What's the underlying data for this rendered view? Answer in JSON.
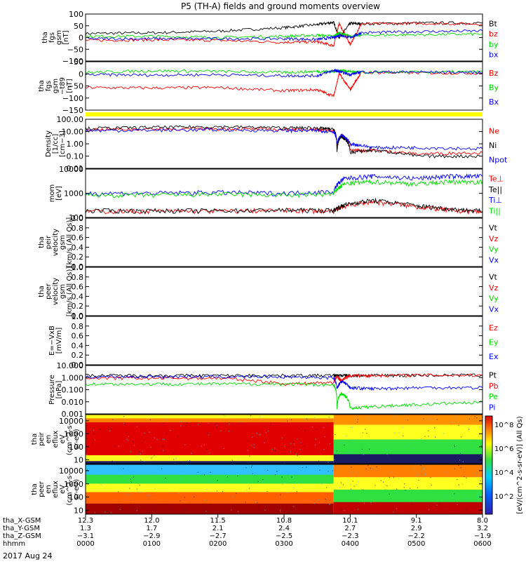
{
  "title": "P5 (TH-A) fields and ground moments overview",
  "date_label": "2017 Aug 24",
  "colors": {
    "black": "#000000",
    "red": "#ff0000",
    "green": "#00dd00",
    "blue": "#0000ff",
    "yellow": "#ffff00"
  },
  "chart_data": [
    {
      "type": "line",
      "id": "fgs",
      "ylabel": [
        "tha",
        "fgs",
        "gsm",
        "[nT]"
      ],
      "yticks": [
        "100",
        "50",
        "0",
        "−50",
        "−100"
      ],
      "ylim": [
        -100,
        100
      ],
      "series": [
        {
          "name": "Bt",
          "color": "black",
          "x": [
            0,
            60,
            120,
            180,
            210,
            225,
            230,
            240,
            250,
            300,
            360
          ],
          "y": [
            17,
            20,
            27,
            42,
            55,
            65,
            0,
            60,
            58,
            62,
            62
          ]
        },
        {
          "name": "bz",
          "color": "red",
          "x": [
            0,
            60,
            120,
            180,
            210,
            225,
            230,
            240,
            250,
            300,
            360
          ],
          "y": [
            -12,
            -10,
            -12,
            -20,
            -18,
            -35,
            60,
            -30,
            58,
            60,
            58
          ]
        },
        {
          "name": "by",
          "color": "green",
          "x": [
            0,
            60,
            120,
            180,
            210,
            225,
            230,
            240,
            250,
            300,
            360
          ],
          "y": [
            5,
            5,
            0,
            5,
            10,
            5,
            20,
            5,
            10,
            12,
            15
          ]
        },
        {
          "name": "bx",
          "color": "blue",
          "x": [
            0,
            60,
            120,
            180,
            210,
            225,
            230,
            240,
            250,
            300,
            360
          ],
          "y": [
            -5,
            -5,
            -5,
            -5,
            -8,
            0,
            10,
            0,
            20,
            25,
            28
          ]
        }
      ]
    },
    {
      "type": "line",
      "id": "fgs-t89",
      "ylabel": [
        "tha",
        "fgs",
        "gsm",
        "−t89",
        "[nT]"
      ],
      "yticks": [
        "50",
        "0",
        "−50",
        "−100",
        "−150"
      ],
      "ylim": [
        -175,
        50
      ],
      "series": [
        {
          "name": "Bz",
          "color": "red",
          "x": [
            0,
            60,
            120,
            180,
            210,
            225,
            230,
            240,
            250,
            300,
            360
          ],
          "y": [
            -70,
            -72,
            -70,
            -85,
            -80,
            -110,
            -5,
            -80,
            0,
            -2,
            -3
          ]
        },
        {
          "name": "By",
          "color": "green",
          "x": [
            0,
            60,
            120,
            180,
            210,
            225,
            230,
            240,
            250,
            300,
            360
          ],
          "y": [
            0,
            8,
            5,
            0,
            5,
            5,
            10,
            5,
            0,
            2,
            3
          ]
        },
        {
          "name": "Bx",
          "color": "blue",
          "x": [
            0,
            60,
            120,
            180,
            210,
            225,
            230,
            240,
            250,
            300,
            360
          ],
          "y": [
            -10,
            -12,
            -10,
            -15,
            -15,
            10,
            5,
            -10,
            3,
            2,
            0
          ]
        }
      ]
    },
    {
      "type": "line",
      "id": "density",
      "ylabel": [
        "Density",
        "[1/cc]",
        "[cm−3]"
      ],
      "yticks": [
        "100.00",
        "10.00",
        "1.00",
        "0.10",
        "0.01"
      ],
      "ylim": [
        0.01,
        100
      ],
      "yscale": "log",
      "series": [
        {
          "name": "Ne",
          "color": "red",
          "x": [
            0,
            60,
            120,
            180,
            210,
            225,
            228,
            232,
            240,
            260,
            300,
            360
          ],
          "y": [
            15,
            16,
            17,
            15,
            15,
            12,
            0.2,
            5,
            0.3,
            0.3,
            0.15,
            0.2
          ]
        },
        {
          "name": "Ni",
          "color": "black",
          "x": [
            0,
            60,
            120,
            180,
            210,
            225,
            228,
            232,
            240,
            260,
            300,
            360
          ],
          "y": [
            18,
            22,
            25,
            20,
            20,
            15,
            0.2,
            4,
            0.2,
            0.3,
            0.1,
            0.1
          ]
        },
        {
          "name": "Npot",
          "color": "blue",
          "x": [
            0,
            60,
            120,
            180,
            210,
            225,
            228,
            232,
            240,
            260,
            300,
            360
          ],
          "y": [
            12,
            13,
            14,
            12,
            12,
            10,
            1,
            5,
            1,
            0.5,
            0.5,
            0.4
          ]
        }
      ]
    },
    {
      "type": "line",
      "id": "temperature",
      "ylabel": [
        "mom",
        "[eV]"
      ],
      "yticks": [
        "10000",
        "1000",
        "100"
      ],
      "ylim": [
        20,
        10000
      ],
      "yscale": "log",
      "series": [
        {
          "name": "Te⊥",
          "color": "red",
          "x": [
            0,
            60,
            120,
            180,
            225,
            235,
            260,
            300,
            330,
            360
          ],
          "y": [
            45,
            45,
            45,
            50,
            45,
            90,
            150,
            80,
            50,
            40
          ]
        },
        {
          "name": "Te||",
          "color": "black",
          "x": [
            0,
            60,
            120,
            180,
            225,
            235,
            260,
            300,
            330,
            360
          ],
          "y": [
            48,
            48,
            48,
            52,
            50,
            100,
            180,
            90,
            60,
            45
          ]
        },
        {
          "name": "Ti⊥",
          "color": "blue",
          "x": [
            0,
            60,
            120,
            180,
            225,
            235,
            260,
            300,
            330,
            360
          ],
          "y": [
            450,
            450,
            500,
            450,
            550,
            3000,
            4000,
            3000,
            4000,
            4000
          ]
        },
        {
          "name": "Ti||",
          "color": "green",
          "x": [
            0,
            60,
            120,
            180,
            225,
            235,
            260,
            300,
            330,
            360
          ],
          "y": [
            350,
            350,
            400,
            350,
            400,
            1500,
            2000,
            1500,
            2000,
            2000
          ]
        }
      ]
    },
    {
      "type": "line",
      "id": "peir-velocity",
      "ylabel": [
        "tha",
        "peir",
        "velocity",
        "gsm",
        "[km/s (All Qs)]"
      ],
      "yticks": [
        "1.0",
        "0.8",
        "0.6",
        "0.4",
        "0.2",
        "0.0"
      ],
      "ylim": [
        0,
        1
      ],
      "series": [
        {
          "name": "Vt",
          "color": "black",
          "x": [],
          "y": []
        },
        {
          "name": "Vz",
          "color": "red",
          "x": [],
          "y": []
        },
        {
          "name": "Vy",
          "color": "green",
          "x": [],
          "y": []
        },
        {
          "name": "Vx",
          "color": "blue",
          "x": [],
          "y": []
        }
      ]
    },
    {
      "type": "line",
      "id": "peer-velocity",
      "ylabel": [
        "tha",
        "peer",
        "velocity",
        "gsm",
        "[km/s (All Qs)]"
      ],
      "yticks": [
        "1.0",
        "0.8",
        "0.6",
        "0.4",
        "0.2",
        "0.0"
      ],
      "ylim": [
        0,
        1
      ],
      "series": [
        {
          "name": "Vt",
          "color": "black",
          "x": [],
          "y": []
        },
        {
          "name": "Vz",
          "color": "red",
          "x": [],
          "y": []
        },
        {
          "name": "Vy",
          "color": "green",
          "x": [],
          "y": []
        },
        {
          "name": "Vx",
          "color": "blue",
          "x": [],
          "y": []
        }
      ]
    },
    {
      "type": "line",
      "id": "efield",
      "ylabel": [
        "E=−VxB",
        "[mV/m]"
      ],
      "yticks": [
        "1.0",
        "0.8",
        "0.6",
        "0.4",
        "0.2",
        "0.0"
      ],
      "ylim": [
        0,
        1
      ],
      "series": [
        {
          "name": "Ez",
          "color": "red",
          "x": [],
          "y": []
        },
        {
          "name": "Ey",
          "color": "green",
          "x": [],
          "y": []
        },
        {
          "name": "Ex",
          "color": "blue",
          "x": [],
          "y": []
        }
      ]
    },
    {
      "type": "line",
      "id": "pressure",
      "ylabel": [
        "Pressure",
        "[nPa]"
      ],
      "yticks": [
        "10.000",
        "1.000",
        "0.100",
        "0.010",
        "0.001"
      ],
      "ylim": [
        0.001,
        10
      ],
      "yscale": "log",
      "series": [
        {
          "name": "Pt",
          "color": "black",
          "x": [
            0,
            60,
            120,
            180,
            225,
            230,
            240,
            260,
            300,
            360
          ],
          "y": [
            1.5,
            1.5,
            1.5,
            1.5,
            1.5,
            1.5,
            1.5,
            1.5,
            1.6,
            1.6
          ]
        },
        {
          "name": "Pb",
          "color": "red",
          "x": [
            0,
            60,
            120,
            180,
            225,
            228,
            232,
            240,
            260,
            300,
            360
          ],
          "y": [
            0.9,
            0.9,
            0.9,
            0.3,
            0.4,
            1.2,
            0.5,
            1.5,
            1.5,
            1.6,
            1.6
          ]
        },
        {
          "name": "Pe",
          "color": "green",
          "x": [
            0,
            60,
            120,
            180,
            225,
            228,
            232,
            240,
            260,
            300,
            360
          ],
          "y": [
            0.3,
            0.3,
            0.3,
            0.3,
            0.25,
            0.003,
            0.05,
            0.003,
            0.004,
            0.006,
            0.009
          ]
        },
        {
          "name": "Pi",
          "color": "blue",
          "x": [
            0,
            60,
            120,
            180,
            225,
            228,
            232,
            240,
            260,
            300,
            360
          ],
          "y": [
            1.2,
            1.2,
            1.2,
            1.2,
            1.0,
            0.1,
            0.5,
            0.15,
            0.12,
            0.15,
            0.15
          ]
        }
      ]
    },
    {
      "type": "heatmap",
      "id": "peir-spectrogram",
      "ylabel": [
        "tha",
        "peir",
        "en",
        "eflux",
        "eV",
        "(cm^2-s-",
        "sr-eV)"
      ],
      "yticks": [
        "10000",
        "1000",
        "100",
        "10"
      ],
      "ylim": [
        5,
        30000
      ],
      "yscale": "log"
    },
    {
      "type": "heatmap",
      "id": "peer-spectrogram",
      "ylabel": [
        "tha",
        "peer",
        "en",
        "eflux",
        "eV",
        "(cm^2-s-",
        "sr-eV)"
      ],
      "yticks": [
        "10000",
        "1000",
        "100",
        "10"
      ],
      "ylim": [
        5,
        30000
      ],
      "yscale": "log"
    }
  ],
  "colorbar": {
    "label": "[eV/(cm^2-s-sr-eV)] (All Qs)",
    "ticks": [
      "10^8",
      "10^6",
      "10^4",
      "10^2"
    ]
  },
  "xaxis": {
    "row_labels": [
      "tha_X-GSM",
      "tha_Y-GSM",
      "tha_Z-GSM",
      "hhmm"
    ],
    "columns": [
      {
        "x": 0,
        "vals": [
          "12.3",
          "1.3",
          "−3.1",
          "0000"
        ]
      },
      {
        "x": 60,
        "vals": [
          "12.0",
          "1.7",
          "−2.9",
          "0100"
        ]
      },
      {
        "x": 120,
        "vals": [
          "11.5",
          "2.1",
          "−2.7",
          "0200"
        ]
      },
      {
        "x": 180,
        "vals": [
          "10.8",
          "2.4",
          "−2.5",
          "0300"
        ]
      },
      {
        "x": 240,
        "vals": [
          "10.1",
          "2.7",
          "−2.3",
          "0400"
        ]
      },
      {
        "x": 300,
        "vals": [
          "9.1",
          "2.9",
          "−2.2",
          "0500"
        ]
      },
      {
        "x": 360,
        "vals": [
          "8.0",
          "3.2",
          "−1.9",
          "0600"
        ]
      }
    ]
  }
}
